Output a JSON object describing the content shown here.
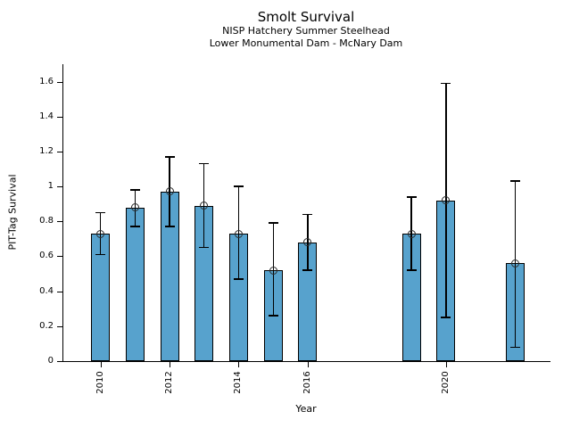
{
  "figure": {
    "background": "#ffffff"
  },
  "chart_data": {
    "type": "bar",
    "title": "Smolt Survival",
    "subtitle1": "NISP Hatchery Summer Steelhead",
    "subtitle2": "Lower Monumental Dam - McNary Dam",
    "xlabel": "Year",
    "ylabel": "PIT-Tag Survival",
    "bar_color": "#57a2cd",
    "bar_edge_color": "#000000",
    "error_color": "#000000",
    "grid": false,
    "legend_position": "none",
    "ylim": [
      0,
      1.7
    ],
    "xlim": [
      2008.9,
      2023.0
    ],
    "yticks": [
      0,
      0.2,
      0.4,
      0.6,
      0.8,
      1.0,
      1.2,
      1.4,
      1.6
    ],
    "ytick_labels": [
      "0",
      "0.2",
      "0.4",
      "0.6",
      "0.8",
      "1",
      "1.2",
      "1.4",
      "1.6"
    ],
    "xticks": [
      2010,
      2012,
      2014,
      2016,
      2020
    ],
    "xtick_labels": [
      "2010",
      "2012",
      "2014",
      "2016",
      "2020"
    ],
    "series": [
      {
        "name": "PIT-Tag Survival",
        "x": [
          2010,
          2011,
          2012,
          2013,
          2014,
          2015,
          2016,
          2019,
          2020,
          2022
        ],
        "values": [
          0.73,
          0.88,
          0.97,
          0.89,
          0.73,
          0.52,
          0.68,
          0.73,
          0.92,
          0.56
        ],
        "ci_low": [
          0.61,
          0.77,
          0.77,
          0.65,
          0.47,
          0.26,
          0.52,
          0.52,
          0.25,
          0.08
        ],
        "ci_high": [
          0.85,
          0.98,
          1.17,
          1.13,
          1.0,
          0.79,
          0.84,
          0.94,
          1.59,
          1.03
        ]
      }
    ]
  }
}
